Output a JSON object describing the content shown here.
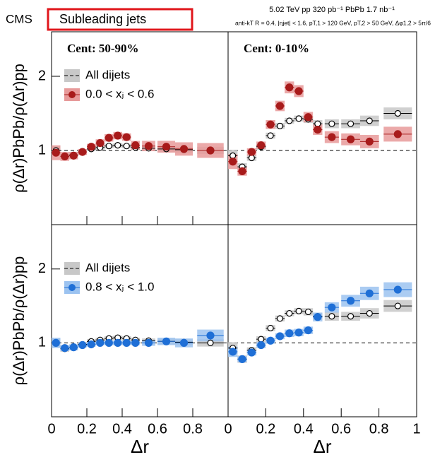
{
  "header": {
    "experiment": "CMS",
    "selection": "Subleading jets",
    "energy": "5.02 TeV   pp 320 pb⁻¹   PbPb 1.7 nb⁻¹",
    "cuts": "anti-kT R = 0.4, |ηjet| < 1.6, pT,1 > 120 GeV, pT,2 > 50 GeV, Δφ1,2 > 5π/6"
  },
  "chart_data": [
    {
      "type": "scatter",
      "title": "Cent: 50-90%",
      "ylabel": "ρ(Δr)PbPb/ρ(Δr)pp",
      "legend": "upper left",
      "reference_line": 1,
      "x": [
        0.025,
        0.075,
        0.125,
        0.175,
        0.225,
        0.275,
        0.325,
        0.375,
        0.425,
        0.475,
        0.55,
        0.65,
        0.75,
        0.9
      ],
      "xlim": [
        0,
        1
      ],
      "ylim": [
        0,
        2.6
      ],
      "xticks": [
        0,
        0.2,
        0.4,
        0.6,
        0.8
      ],
      "yticks": [
        1,
        2
      ],
      "series": [
        {
          "name": "All dijets",
          "color": "#ffffff",
          "band": "#c8c8c8",
          "values": [
            1.0,
            0.92,
            0.94,
            0.98,
            1.02,
            1.04,
            1.06,
            1.07,
            1.06,
            1.04,
            1.03,
            1.02,
            1.01,
            1.0
          ],
          "errors": [
            0.06,
            0.04,
            0.04,
            0.03,
            0.03,
            0.03,
            0.03,
            0.03,
            0.03,
            0.03,
            0.03,
            0.04,
            0.04,
            0.05
          ]
        },
        {
          "name": "0.0 < xⱼ < 0.6",
          "color": "#a81b1b",
          "band": "#e79a9a",
          "values": [
            0.97,
            0.92,
            0.93,
            0.98,
            1.05,
            1.1,
            1.17,
            1.2,
            1.18,
            1.07,
            1.06,
            1.05,
            1.02,
            1.0
          ],
          "errors": [
            0.1,
            0.06,
            0.05,
            0.04,
            0.04,
            0.05,
            0.05,
            0.05,
            0.05,
            0.06,
            0.07,
            0.08,
            0.09,
            0.1
          ]
        }
      ]
    },
    {
      "type": "scatter",
      "title": "Cent: 0-10%",
      "reference_line": 1,
      "x": [
        0.025,
        0.075,
        0.125,
        0.175,
        0.225,
        0.275,
        0.325,
        0.375,
        0.425,
        0.475,
        0.55,
        0.65,
        0.75,
        0.9
      ],
      "xlim": [
        0,
        1
      ],
      "ylim": [
        0,
        2.6
      ],
      "series": [
        {
          "name": "All dijets",
          "color": "#ffffff",
          "band": "#c8c8c8",
          "values": [
            0.93,
            0.78,
            0.9,
            1.05,
            1.2,
            1.33,
            1.4,
            1.43,
            1.42,
            1.36,
            1.36,
            1.36,
            1.4,
            1.5
          ],
          "errors": [
            0.08,
            0.05,
            0.04,
            0.04,
            0.04,
            0.04,
            0.04,
            0.04,
            0.05,
            0.05,
            0.06,
            0.06,
            0.07,
            0.08
          ]
        },
        {
          "name": "0.0 < xⱼ < 0.6",
          "color": "#a81b1b",
          "band": "#e79a9a",
          "values": [
            0.85,
            0.72,
            0.98,
            1.07,
            1.35,
            1.6,
            1.85,
            1.8,
            1.45,
            1.28,
            1.18,
            1.15,
            1.12,
            1.22
          ],
          "errors": [
            0.1,
            0.06,
            0.05,
            0.05,
            0.06,
            0.07,
            0.08,
            0.08,
            0.07,
            0.07,
            0.08,
            0.08,
            0.09,
            0.1
          ]
        }
      ]
    },
    {
      "type": "scatter",
      "ylabel": "ρ(Δr)PbPb/ρ(Δr)pp",
      "xlabel": "Δr",
      "legend": "upper left",
      "reference_line": 1,
      "x": [
        0.025,
        0.075,
        0.125,
        0.175,
        0.225,
        0.275,
        0.325,
        0.375,
        0.425,
        0.475,
        0.55,
        0.65,
        0.75,
        0.9
      ],
      "xlim": [
        0,
        1
      ],
      "ylim": [
        0,
        2.6
      ],
      "xticks": [
        0,
        0.2,
        0.4,
        0.6,
        0.8
      ],
      "yticks": [
        1,
        2
      ],
      "series": [
        {
          "name": "All dijets",
          "color": "#ffffff",
          "band": "#c8c8c8",
          "values": [
            1.0,
            0.92,
            0.94,
            0.98,
            1.02,
            1.04,
            1.06,
            1.07,
            1.06,
            1.04,
            1.03,
            1.02,
            1.01,
            1.0
          ],
          "errors": [
            0.06,
            0.04,
            0.04,
            0.03,
            0.03,
            0.03,
            0.03,
            0.03,
            0.03,
            0.03,
            0.03,
            0.04,
            0.04,
            0.05
          ]
        },
        {
          "name": "0.8 < xⱼ < 1.0",
          "color": "#1f6fd6",
          "band": "#9cc3f0",
          "values": [
            1.0,
            0.93,
            0.94,
            0.97,
            0.98,
            1.0,
            1.0,
            1.0,
            1.0,
            1.0,
            1.0,
            1.02,
            1.0,
            1.1
          ],
          "errors": [
            0.07,
            0.04,
            0.04,
            0.03,
            0.03,
            0.03,
            0.03,
            0.03,
            0.03,
            0.03,
            0.04,
            0.05,
            0.06,
            0.08
          ]
        }
      ]
    },
    {
      "type": "scatter",
      "xlabel": "Δr",
      "reference_line": 1,
      "x": [
        0.025,
        0.075,
        0.125,
        0.175,
        0.225,
        0.275,
        0.325,
        0.375,
        0.425,
        0.475,
        0.55,
        0.65,
        0.75,
        0.9
      ],
      "xlim": [
        0,
        1
      ],
      "ylim": [
        0,
        2.6
      ],
      "xticks": [
        0,
        0.2,
        0.4,
        0.6,
        0.8,
        1
      ],
      "series": [
        {
          "name": "All dijets",
          "color": "#ffffff",
          "band": "#c8c8c8",
          "values": [
            0.93,
            0.78,
            0.9,
            1.05,
            1.2,
            1.33,
            1.4,
            1.43,
            1.42,
            1.36,
            1.36,
            1.36,
            1.4,
            1.5
          ],
          "errors": [
            0.08,
            0.05,
            0.04,
            0.04,
            0.04,
            0.04,
            0.04,
            0.04,
            0.05,
            0.05,
            0.06,
            0.06,
            0.07,
            0.08
          ]
        },
        {
          "name": "0.8 < xⱼ < 1.0",
          "color": "#1f6fd6",
          "band": "#9cc3f0",
          "values": [
            0.88,
            0.78,
            0.87,
            0.97,
            1.03,
            1.09,
            1.13,
            1.14,
            1.17,
            1.35,
            1.48,
            1.57,
            1.67,
            1.72
          ],
          "errors": [
            0.07,
            0.04,
            0.04,
            0.04,
            0.04,
            0.04,
            0.05,
            0.05,
            0.05,
            0.06,
            0.07,
            0.08,
            0.09,
            0.1
          ]
        }
      ]
    }
  ]
}
